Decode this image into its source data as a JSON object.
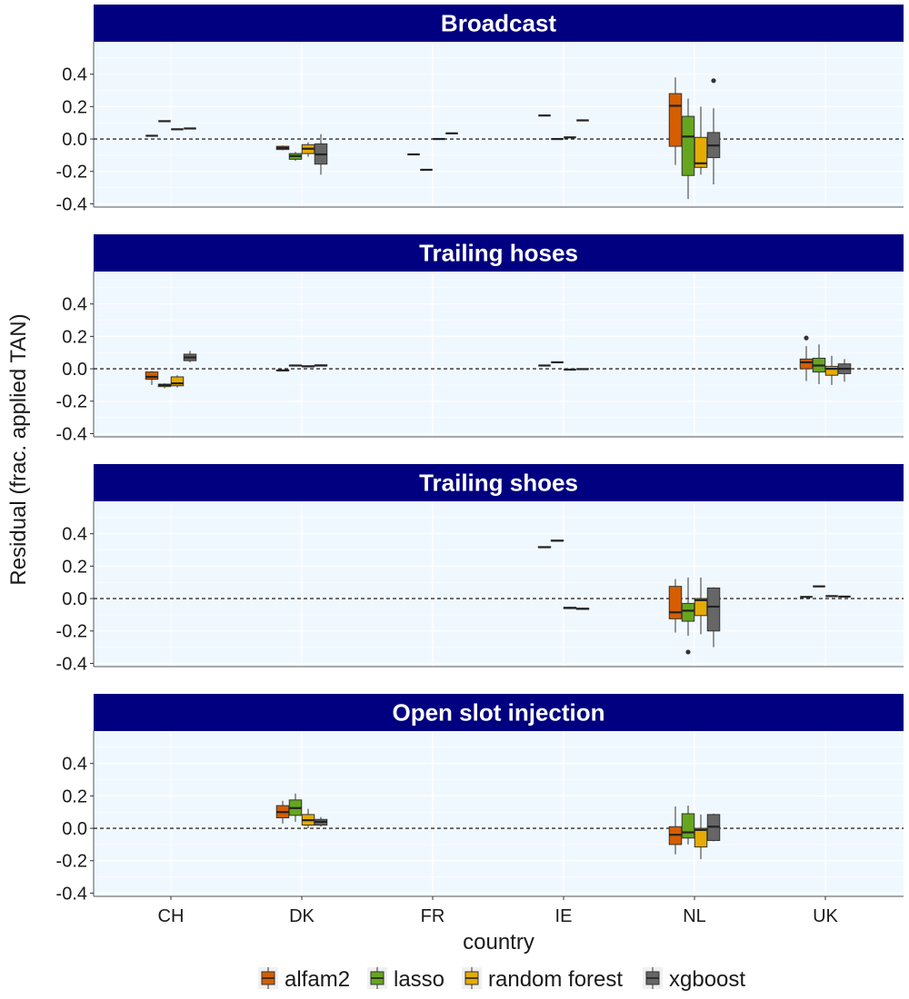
{
  "chart_data": {
    "type": "boxplot",
    "title": "",
    "xlabel": "country",
    "ylabel": "Residual (frac. applied TAN)",
    "ylim": [
      -0.42,
      0.6
    ],
    "yticks": [
      -0.4,
      -0.2,
      0.0,
      0.2,
      0.4
    ],
    "ytick_labels": [
      "-0.4",
      "-0.2",
      "0.0",
      "0.2",
      "0.4"
    ],
    "reference_line": 0.0,
    "categories": [
      "CH",
      "DK",
      "FR",
      "IE",
      "NL",
      "UK"
    ],
    "legend": {
      "position": "bottom",
      "entries": [
        {
          "name": "alfam2",
          "color": "#D55E00"
        },
        {
          "name": "lasso",
          "color": "#66A61E"
        },
        {
          "name": "random forest",
          "color": "#E6AB02"
        },
        {
          "name": "xgboost",
          "color": "#666666"
        }
      ]
    },
    "panels": [
      {
        "title": "Broadcast",
        "boxes": [
          {
            "country": "CH",
            "model": "alfam2",
            "min": 0.02,
            "q1": 0.02,
            "median": 0.02,
            "q3": 0.02,
            "max": 0.02,
            "outliers": []
          },
          {
            "country": "CH",
            "model": "lasso",
            "min": 0.11,
            "q1": 0.11,
            "median": 0.11,
            "q3": 0.11,
            "max": 0.11,
            "outliers": []
          },
          {
            "country": "CH",
            "model": "random forest",
            "min": 0.06,
            "q1": 0.06,
            "median": 0.06,
            "q3": 0.06,
            "max": 0.06,
            "outliers": []
          },
          {
            "country": "CH",
            "model": "xgboost",
            "min": 0.065,
            "q1": 0.065,
            "median": 0.065,
            "q3": 0.065,
            "max": 0.065,
            "outliers": []
          },
          {
            "country": "DK",
            "model": "alfam2",
            "min": -0.07,
            "q1": -0.065,
            "median": -0.055,
            "q3": -0.045,
            "max": -0.04,
            "outliers": []
          },
          {
            "country": "DK",
            "model": "lasso",
            "min": -0.135,
            "q1": -0.125,
            "median": -0.105,
            "q3": -0.09,
            "max": -0.08,
            "outliers": []
          },
          {
            "country": "DK",
            "model": "random forest",
            "min": -0.11,
            "q1": -0.09,
            "median": -0.06,
            "q3": -0.035,
            "max": -0.02,
            "outliers": []
          },
          {
            "country": "DK",
            "model": "xgboost",
            "min": -0.22,
            "q1": -0.155,
            "median": -0.095,
            "q3": -0.03,
            "max": 0.03,
            "outliers": []
          },
          {
            "country": "FR",
            "model": "alfam2",
            "min": -0.095,
            "q1": -0.095,
            "median": -0.095,
            "q3": -0.095,
            "max": -0.095,
            "outliers": []
          },
          {
            "country": "FR",
            "model": "lasso",
            "min": -0.19,
            "q1": -0.19,
            "median": -0.19,
            "q3": -0.19,
            "max": -0.19,
            "outliers": []
          },
          {
            "country": "FR",
            "model": "random forest",
            "min": 0.0,
            "q1": 0.0,
            "median": 0.0,
            "q3": 0.0,
            "max": 0.0,
            "outliers": []
          },
          {
            "country": "FR",
            "model": "xgboost",
            "min": 0.035,
            "q1": 0.035,
            "median": 0.035,
            "q3": 0.035,
            "max": 0.035,
            "outliers": []
          },
          {
            "country": "IE",
            "model": "alfam2",
            "min": 0.145,
            "q1": 0.145,
            "median": 0.145,
            "q3": 0.145,
            "max": 0.145,
            "outliers": []
          },
          {
            "country": "IE",
            "model": "lasso",
            "min": 0.0,
            "q1": 0.0,
            "median": 0.0,
            "q3": 0.0,
            "max": 0.0,
            "outliers": []
          },
          {
            "country": "IE",
            "model": "random forest",
            "min": 0.01,
            "q1": 0.01,
            "median": 0.01,
            "q3": 0.01,
            "max": 0.01,
            "outliers": []
          },
          {
            "country": "IE",
            "model": "xgboost",
            "min": 0.115,
            "q1": 0.115,
            "median": 0.115,
            "q3": 0.115,
            "max": 0.115,
            "outliers": []
          },
          {
            "country": "NL",
            "model": "alfam2",
            "min": -0.16,
            "q1": -0.045,
            "median": 0.205,
            "q3": 0.28,
            "max": 0.38,
            "outliers": []
          },
          {
            "country": "NL",
            "model": "lasso",
            "min": -0.37,
            "q1": -0.225,
            "median": 0.015,
            "q3": 0.14,
            "max": 0.25,
            "outliers": []
          },
          {
            "country": "NL",
            "model": "random forest",
            "min": -0.22,
            "q1": -0.175,
            "median": -0.15,
            "q3": 0.01,
            "max": 0.2,
            "outliers": []
          },
          {
            "country": "NL",
            "model": "xgboost",
            "min": -0.28,
            "q1": -0.115,
            "median": -0.04,
            "q3": 0.04,
            "max": 0.19,
            "outliers": [
              0.36
            ]
          }
        ]
      },
      {
        "title": "Trailing hoses",
        "boxes": [
          {
            "country": "CH",
            "model": "alfam2",
            "min": -0.1,
            "q1": -0.065,
            "median": -0.05,
            "q3": -0.02,
            "max": -0.015,
            "outliers": []
          },
          {
            "country": "CH",
            "model": "lasso",
            "min": -0.12,
            "q1": -0.11,
            "median": -0.1,
            "q3": -0.095,
            "max": -0.09,
            "outliers": []
          },
          {
            "country": "CH",
            "model": "random forest",
            "min": -0.115,
            "q1": -0.105,
            "median": -0.09,
            "q3": -0.05,
            "max": -0.04,
            "outliers": []
          },
          {
            "country": "CH",
            "model": "xgboost",
            "min": 0.04,
            "q1": 0.05,
            "median": 0.07,
            "q3": 0.09,
            "max": 0.11,
            "outliers": []
          },
          {
            "country": "DK",
            "model": "alfam2",
            "min": -0.015,
            "q1": -0.012,
            "median": -0.01,
            "q3": -0.007,
            "max": -0.005,
            "outliers": []
          },
          {
            "country": "DK",
            "model": "lasso",
            "min": 0.015,
            "q1": 0.018,
            "median": 0.02,
            "q3": 0.022,
            "max": 0.025,
            "outliers": []
          },
          {
            "country": "DK",
            "model": "random forest",
            "min": 0.01,
            "q1": 0.013,
            "median": 0.015,
            "q3": 0.018,
            "max": 0.02,
            "outliers": []
          },
          {
            "country": "DK",
            "model": "xgboost",
            "min": 0.015,
            "q1": 0.018,
            "median": 0.02,
            "q3": 0.024,
            "max": 0.028,
            "outliers": []
          },
          {
            "country": "IE",
            "model": "alfam2",
            "min": 0.02,
            "q1": 0.02,
            "median": 0.02,
            "q3": 0.02,
            "max": 0.02,
            "outliers": []
          },
          {
            "country": "IE",
            "model": "lasso",
            "min": 0.04,
            "q1": 0.04,
            "median": 0.04,
            "q3": 0.04,
            "max": 0.04,
            "outliers": []
          },
          {
            "country": "IE",
            "model": "random forest",
            "min": -0.005,
            "q1": -0.005,
            "median": -0.005,
            "q3": -0.005,
            "max": -0.005,
            "outliers": []
          },
          {
            "country": "IE",
            "model": "xgboost",
            "min": -0.002,
            "q1": -0.002,
            "median": -0.002,
            "q3": -0.002,
            "max": -0.002,
            "outliers": []
          },
          {
            "country": "UK",
            "model": "alfam2",
            "min": -0.075,
            "q1": 0.0,
            "median": 0.04,
            "q3": 0.06,
            "max": 0.14,
            "outliers": [
              0.19
            ]
          },
          {
            "country": "UK",
            "model": "lasso",
            "min": -0.095,
            "q1": -0.02,
            "median": 0.02,
            "q3": 0.065,
            "max": 0.15,
            "outliers": []
          },
          {
            "country": "UK",
            "model": "random forest",
            "min": -0.1,
            "q1": -0.04,
            "median": 0.0,
            "q3": 0.015,
            "max": 0.08,
            "outliers": []
          },
          {
            "country": "UK",
            "model": "xgboost",
            "min": -0.08,
            "q1": -0.03,
            "median": 0.0,
            "q3": 0.03,
            "max": 0.06,
            "outliers": []
          }
        ]
      },
      {
        "title": "Trailing shoes",
        "boxes": [
          {
            "country": "IE",
            "model": "alfam2",
            "min": 0.313,
            "q1": 0.315,
            "median": 0.317,
            "q3": 0.32,
            "max": 0.322,
            "outliers": []
          },
          {
            "country": "IE",
            "model": "lasso",
            "min": 0.353,
            "q1": 0.355,
            "median": 0.357,
            "q3": 0.36,
            "max": 0.362,
            "outliers": []
          },
          {
            "country": "IE",
            "model": "random forest",
            "min": -0.065,
            "q1": -0.062,
            "median": -0.058,
            "q3": -0.054,
            "max": -0.05,
            "outliers": []
          },
          {
            "country": "IE",
            "model": "xgboost",
            "min": -0.07,
            "q1": -0.067,
            "median": -0.063,
            "q3": -0.06,
            "max": -0.057,
            "outliers": []
          },
          {
            "country": "NL",
            "model": "alfam2",
            "min": -0.21,
            "q1": -0.125,
            "median": -0.085,
            "q3": 0.075,
            "max": 0.12,
            "outliers": []
          },
          {
            "country": "NL",
            "model": "lasso",
            "min": -0.23,
            "q1": -0.14,
            "median": -0.075,
            "q3": -0.03,
            "max": 0.13,
            "outliers": [
              -0.33
            ]
          },
          {
            "country": "NL",
            "model": "random forest",
            "min": -0.22,
            "q1": -0.105,
            "median": -0.01,
            "q3": 0.0,
            "max": 0.13,
            "outliers": []
          },
          {
            "country": "NL",
            "model": "xgboost",
            "min": -0.3,
            "q1": -0.2,
            "median": -0.05,
            "q3": 0.065,
            "max": 0.07,
            "outliers": []
          },
          {
            "country": "UK",
            "model": "alfam2",
            "min": 0.01,
            "q1": 0.01,
            "median": 0.01,
            "q3": 0.01,
            "max": 0.01,
            "outliers": []
          },
          {
            "country": "UK",
            "model": "lasso",
            "min": 0.075,
            "q1": 0.075,
            "median": 0.075,
            "q3": 0.075,
            "max": 0.075,
            "outliers": []
          },
          {
            "country": "UK",
            "model": "random forest",
            "min": 0.015,
            "q1": 0.015,
            "median": 0.015,
            "q3": 0.015,
            "max": 0.015,
            "outliers": []
          },
          {
            "country": "UK",
            "model": "xgboost",
            "min": 0.012,
            "q1": 0.012,
            "median": 0.012,
            "q3": 0.012,
            "max": 0.012,
            "outliers": []
          }
        ]
      },
      {
        "title": "Open slot injection",
        "boxes": [
          {
            "country": "DK",
            "model": "alfam2",
            "min": 0.03,
            "q1": 0.065,
            "median": 0.1,
            "q3": 0.14,
            "max": 0.17,
            "outliers": []
          },
          {
            "country": "DK",
            "model": "lasso",
            "min": 0.04,
            "q1": 0.08,
            "median": 0.125,
            "q3": 0.175,
            "max": 0.215,
            "outliers": []
          },
          {
            "country": "DK",
            "model": "random forest",
            "min": 0.0,
            "q1": 0.02,
            "median": 0.05,
            "q3": 0.085,
            "max": 0.12,
            "outliers": []
          },
          {
            "country": "DK",
            "model": "xgboost",
            "min": 0.01,
            "q1": 0.02,
            "median": 0.04,
            "q3": 0.055,
            "max": 0.07,
            "outliers": []
          },
          {
            "country": "NL",
            "model": "alfam2",
            "min": -0.16,
            "q1": -0.1,
            "median": -0.04,
            "q3": 0.01,
            "max": 0.135,
            "outliers": []
          },
          {
            "country": "NL",
            "model": "lasso",
            "min": -0.1,
            "q1": -0.06,
            "median": -0.025,
            "q3": 0.09,
            "max": 0.14,
            "outliers": []
          },
          {
            "country": "NL",
            "model": "random forest",
            "min": -0.19,
            "q1": -0.115,
            "median": -0.01,
            "q3": 0.0,
            "max": 0.085,
            "outliers": []
          },
          {
            "country": "NL",
            "model": "xgboost",
            "min": -0.08,
            "q1": -0.075,
            "median": 0.01,
            "q3": 0.085,
            "max": 0.09,
            "outliers": []
          }
        ]
      }
    ]
  }
}
